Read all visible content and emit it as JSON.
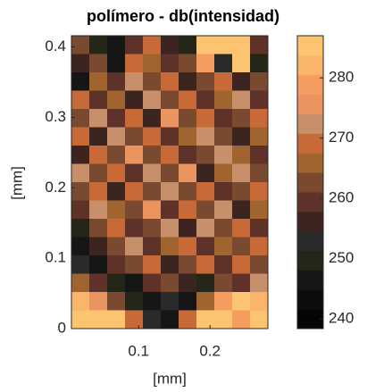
{
  "chart_data": {
    "type": "heatmap",
    "title": "polímero - db(intensidad)",
    "xlabel": "[mm]",
    "ylabel": "[mm]",
    "xlim": [
      0.006,
      0.281
    ],
    "ylim": [
      0,
      0.416
    ],
    "xticks": [
      0.1,
      0.2
    ],
    "yticks": [
      0,
      0.1,
      0.2,
      0.3,
      0.4
    ],
    "z": [
      [
        262,
        250,
        245,
        258,
        268,
        255,
        250,
        284,
        286,
        285,
        260
      ],
      [
        255,
        262,
        248,
        270,
        265,
        258,
        262,
        280,
        252,
        285,
        250
      ],
      [
        248,
        266,
        258,
        272,
        262,
        268,
        256,
        262,
        270,
        255,
        264
      ],
      [
        270,
        258,
        266,
        255,
        274,
        262,
        270,
        258,
        266,
        272,
        258
      ],
      [
        262,
        272,
        260,
        268,
        256,
        276,
        262,
        268,
        258,
        264,
        270
      ],
      [
        268,
        256,
        274,
        262,
        270,
        258,
        266,
        274,
        262,
        256,
        266
      ],
      [
        256,
        270,
        262,
        276,
        264,
        270,
        258,
        262,
        272,
        266,
        258
      ],
      [
        272,
        262,
        268,
        258,
        272,
        264,
        276,
        256,
        266,
        274,
        262
      ],
      [
        264,
        268,
        256,
        270,
        262,
        274,
        262,
        270,
        258,
        262,
        270
      ],
      [
        258,
        274,
        266,
        262,
        276,
        260,
        268,
        264,
        272,
        256,
        266
      ],
      [
        250,
        262,
        270,
        258,
        264,
        272,
        256,
        274,
        262,
        268,
        258
      ],
      [
        246,
        256,
        264,
        272,
        258,
        266,
        270,
        258,
        266,
        262,
        270
      ],
      [
        252,
        248,
        258,
        262,
        270,
        256,
        262,
        268,
        258,
        270,
        264
      ],
      [
        266,
        258,
        250,
        246,
        258,
        262,
        256,
        250,
        264,
        258,
        272
      ],
      [
        282,
        276,
        262,
        250,
        246,
        252,
        248,
        266,
        278,
        284,
        282
      ],
      [
        286,
        285,
        284,
        268,
        252,
        248,
        270,
        284,
        286,
        278,
        285
      ]
    ],
    "clim": [
      238.4,
      287
    ],
    "cticks": [
      240,
      250,
      260,
      270,
      280
    ],
    "colormap": [
      "#050505",
      "#0d0d0d",
      "#161616",
      "#262618",
      "#2a2a2a",
      "#3c2420",
      "#5e3228",
      "#7a4a30",
      "#a0652e",
      "#c86a38",
      "#c8906a",
      "#ea9460",
      "#f59c60",
      "#fbb56a",
      "#fcc470"
    ]
  }
}
